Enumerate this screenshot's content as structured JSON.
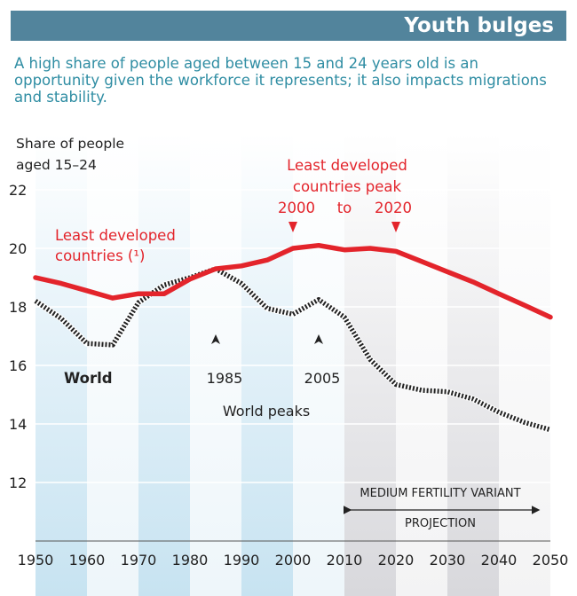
{
  "header": {
    "title": "Youth bulges"
  },
  "subtitle": "A high share of people aged between 15 and 24 years old is an opportunity given the workforce it represents; it also impacts migrations and stability.",
  "chart_data": {
    "type": "line",
    "ylabel_line1": "Share of people",
    "ylabel_line2": "aged 15–24",
    "xlim": [
      1950,
      2050
    ],
    "ylim": [
      10,
      22
    ],
    "x_ticks": [
      1950,
      1960,
      1970,
      1980,
      1990,
      2000,
      2010,
      2020,
      2030,
      2040,
      2050
    ],
    "y_ticks": [
      12,
      14,
      16,
      18,
      20,
      22
    ],
    "grid": true,
    "series": [
      {
        "name": "Least developed countries (¹)",
        "label_line1": "Least developed",
        "label_line2": "countries (¹)",
        "color": "#e3242b",
        "style": "solid",
        "x": [
          1950,
          1955,
          1960,
          1965,
          1970,
          1975,
          1980,
          1985,
          1990,
          1995,
          2000,
          2005,
          2010,
          2015,
          2020,
          2025,
          2030,
          2035,
          2040,
          2045,
          2050
        ],
        "y": [
          19.0,
          18.8,
          18.55,
          18.3,
          18.45,
          18.45,
          18.95,
          19.3,
          19.4,
          19.6,
          20.0,
          20.1,
          19.95,
          20.0,
          19.9,
          19.55,
          19.2,
          18.85,
          18.45,
          18.05,
          17.65
        ]
      },
      {
        "name": "World",
        "label": "World",
        "color": "#222222",
        "style": "dotted",
        "x": [
          1950,
          1955,
          1960,
          1965,
          1970,
          1975,
          1980,
          1985,
          1990,
          1995,
          2000,
          2005,
          2010,
          2015,
          2020,
          2025,
          2030,
          2035,
          2040,
          2045,
          2050
        ],
        "y": [
          18.2,
          17.6,
          16.75,
          16.7,
          18.15,
          18.75,
          19.0,
          19.3,
          18.8,
          17.95,
          17.75,
          18.25,
          17.65,
          16.2,
          15.35,
          15.15,
          15.1,
          14.85,
          14.4,
          14.05,
          13.8
        ]
      }
    ],
    "annotations": {
      "ldc_peak_line1": "Least developed",
      "ldc_peak_line2": "countries peak",
      "ldc_peak_from": "2000",
      "ldc_peak_to_word": "to",
      "ldc_peak_to": "2020",
      "ldc_peak_years": [
        2000,
        2020
      ],
      "world_peak_1": "1985",
      "world_peak_2": "2005",
      "world_peak_years": [
        1985,
        2005
      ],
      "world_peaks_label": "World peaks",
      "projection_top": "MEDIUM FERTILITY VARIANT",
      "projection_bottom": "PROJECTION",
      "projection_range": [
        2010,
        2050
      ]
    },
    "colors": {
      "ldc": "#e3242b",
      "world": "#222222",
      "header": "#52849c",
      "subtitle": "#2f8da3"
    }
  }
}
